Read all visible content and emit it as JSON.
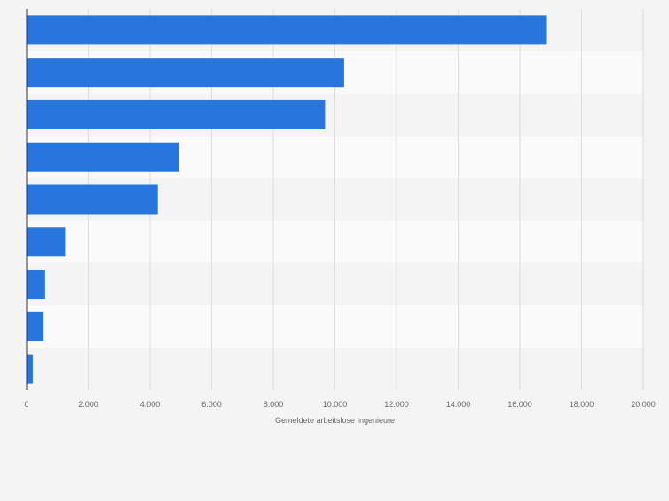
{
  "chart_data": {
    "type": "bar",
    "orientation": "horizontal",
    "categories": [
      "",
      "",
      "",
      "",
      "",
      "",
      "",
      "",
      ""
    ],
    "values": [
      16850,
      10300,
      9680,
      4950,
      4250,
      1250,
      600,
      550,
      200
    ],
    "xlabel": "Gemeldete arbeitslose Ingenieure",
    "xlim": [
      0,
      20000
    ],
    "ticks": [
      0,
      2000,
      4000,
      6000,
      8000,
      10000,
      12000,
      14000,
      16000,
      18000,
      20000
    ],
    "tick_labels": [
      "0",
      "2.000",
      "4.000",
      "6.000",
      "8.000",
      "10.000",
      "12.000",
      "14.000",
      "16.000",
      "18.000",
      "20.000"
    ],
    "grid": true,
    "colors": {
      "bar": "#2776dd",
      "band_light": "#fafafa",
      "band_dark": "#f4f4f4",
      "grid": "#dddddd",
      "axis": "#333333",
      "text": "#666666"
    }
  }
}
